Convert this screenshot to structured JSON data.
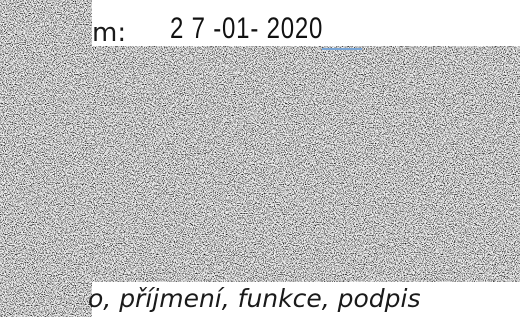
{
  "fields": {
    "date_label": "m:",
    "date_value": "2 7 -01- 2020",
    "signature_label": "o, příjmení, funkce, podpis"
  }
}
